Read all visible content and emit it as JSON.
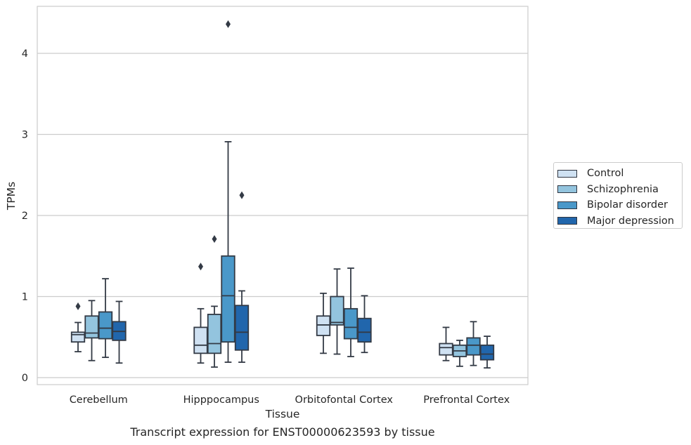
{
  "caption": "Transcript expression for ENST00000623593 by tissue",
  "chart_data": {
    "type": "box",
    "title": "",
    "xlabel": "Tissue",
    "ylabel": "TPMs",
    "ylim": [
      -0.08,
      4.58
    ],
    "yticks": [
      0,
      1,
      2,
      3,
      4
    ],
    "grid": "horizontal",
    "legend_position": "right",
    "categories": [
      "Cerebellum",
      "Hipppocampus",
      "Orbitofontal Cortex",
      "Prefrontal Cortex"
    ],
    "series": [
      {
        "name": "Control",
        "color": "#cfe1f2",
        "boxes": [
          {
            "whislo": 0.32,
            "q1": 0.44,
            "med": 0.53,
            "q3": 0.56,
            "whishi": 0.68,
            "fliers": [
              0.88
            ]
          },
          {
            "whislo": 0.18,
            "q1": 0.3,
            "med": 0.4,
            "q3": 0.62,
            "whishi": 0.85,
            "fliers": [
              1.37
            ]
          },
          {
            "whislo": 0.3,
            "q1": 0.52,
            "med": 0.65,
            "q3": 0.76,
            "whishi": 1.04,
            "fliers": []
          },
          {
            "whislo": 0.21,
            "q1": 0.28,
            "med": 0.37,
            "q3": 0.42,
            "whishi": 0.62,
            "fliers": []
          }
        ]
      },
      {
        "name": "Schizophrenia",
        "color": "#93c4de",
        "boxes": [
          {
            "whislo": 0.21,
            "q1": 0.49,
            "med": 0.55,
            "q3": 0.76,
            "whishi": 0.95,
            "fliers": []
          },
          {
            "whislo": 0.13,
            "q1": 0.3,
            "med": 0.42,
            "q3": 0.78,
            "whishi": 0.88,
            "fliers": [
              1.71
            ]
          },
          {
            "whislo": 0.29,
            "q1": 0.65,
            "med": 0.68,
            "q3": 1.0,
            "whishi": 1.34,
            "fliers": []
          },
          {
            "whislo": 0.14,
            "q1": 0.26,
            "med": 0.33,
            "q3": 0.4,
            "whishi": 0.46,
            "fliers": []
          }
        ]
      },
      {
        "name": "Bipolar disorder",
        "color": "#4a98c9",
        "boxes": [
          {
            "whislo": 0.25,
            "q1": 0.48,
            "med": 0.61,
            "q3": 0.81,
            "whishi": 1.22,
            "fliers": []
          },
          {
            "whislo": 0.19,
            "q1": 0.44,
            "med": 1.01,
            "q3": 1.5,
            "whishi": 2.91,
            "fliers": [
              4.36
            ]
          },
          {
            "whislo": 0.26,
            "q1": 0.48,
            "med": 0.62,
            "q3": 0.85,
            "whishi": 1.35,
            "fliers": []
          },
          {
            "whislo": 0.15,
            "q1": 0.28,
            "med": 0.4,
            "q3": 0.49,
            "whishi": 0.69,
            "fliers": []
          }
        ]
      },
      {
        "name": "Major depression",
        "color": "#2166ac",
        "boxes": [
          {
            "whislo": 0.18,
            "q1": 0.46,
            "med": 0.57,
            "q3": 0.69,
            "whishi": 0.94,
            "fliers": []
          },
          {
            "whislo": 0.19,
            "q1": 0.34,
            "med": 0.56,
            "q3": 0.89,
            "whishi": 1.07,
            "fliers": [
              2.25
            ]
          },
          {
            "whislo": 0.31,
            "q1": 0.44,
            "med": 0.56,
            "q3": 0.73,
            "whishi": 1.01,
            "fliers": []
          },
          {
            "whislo": 0.12,
            "q1": 0.22,
            "med": 0.29,
            "q3": 0.4,
            "whishi": 0.51,
            "fliers": []
          }
        ]
      }
    ]
  }
}
